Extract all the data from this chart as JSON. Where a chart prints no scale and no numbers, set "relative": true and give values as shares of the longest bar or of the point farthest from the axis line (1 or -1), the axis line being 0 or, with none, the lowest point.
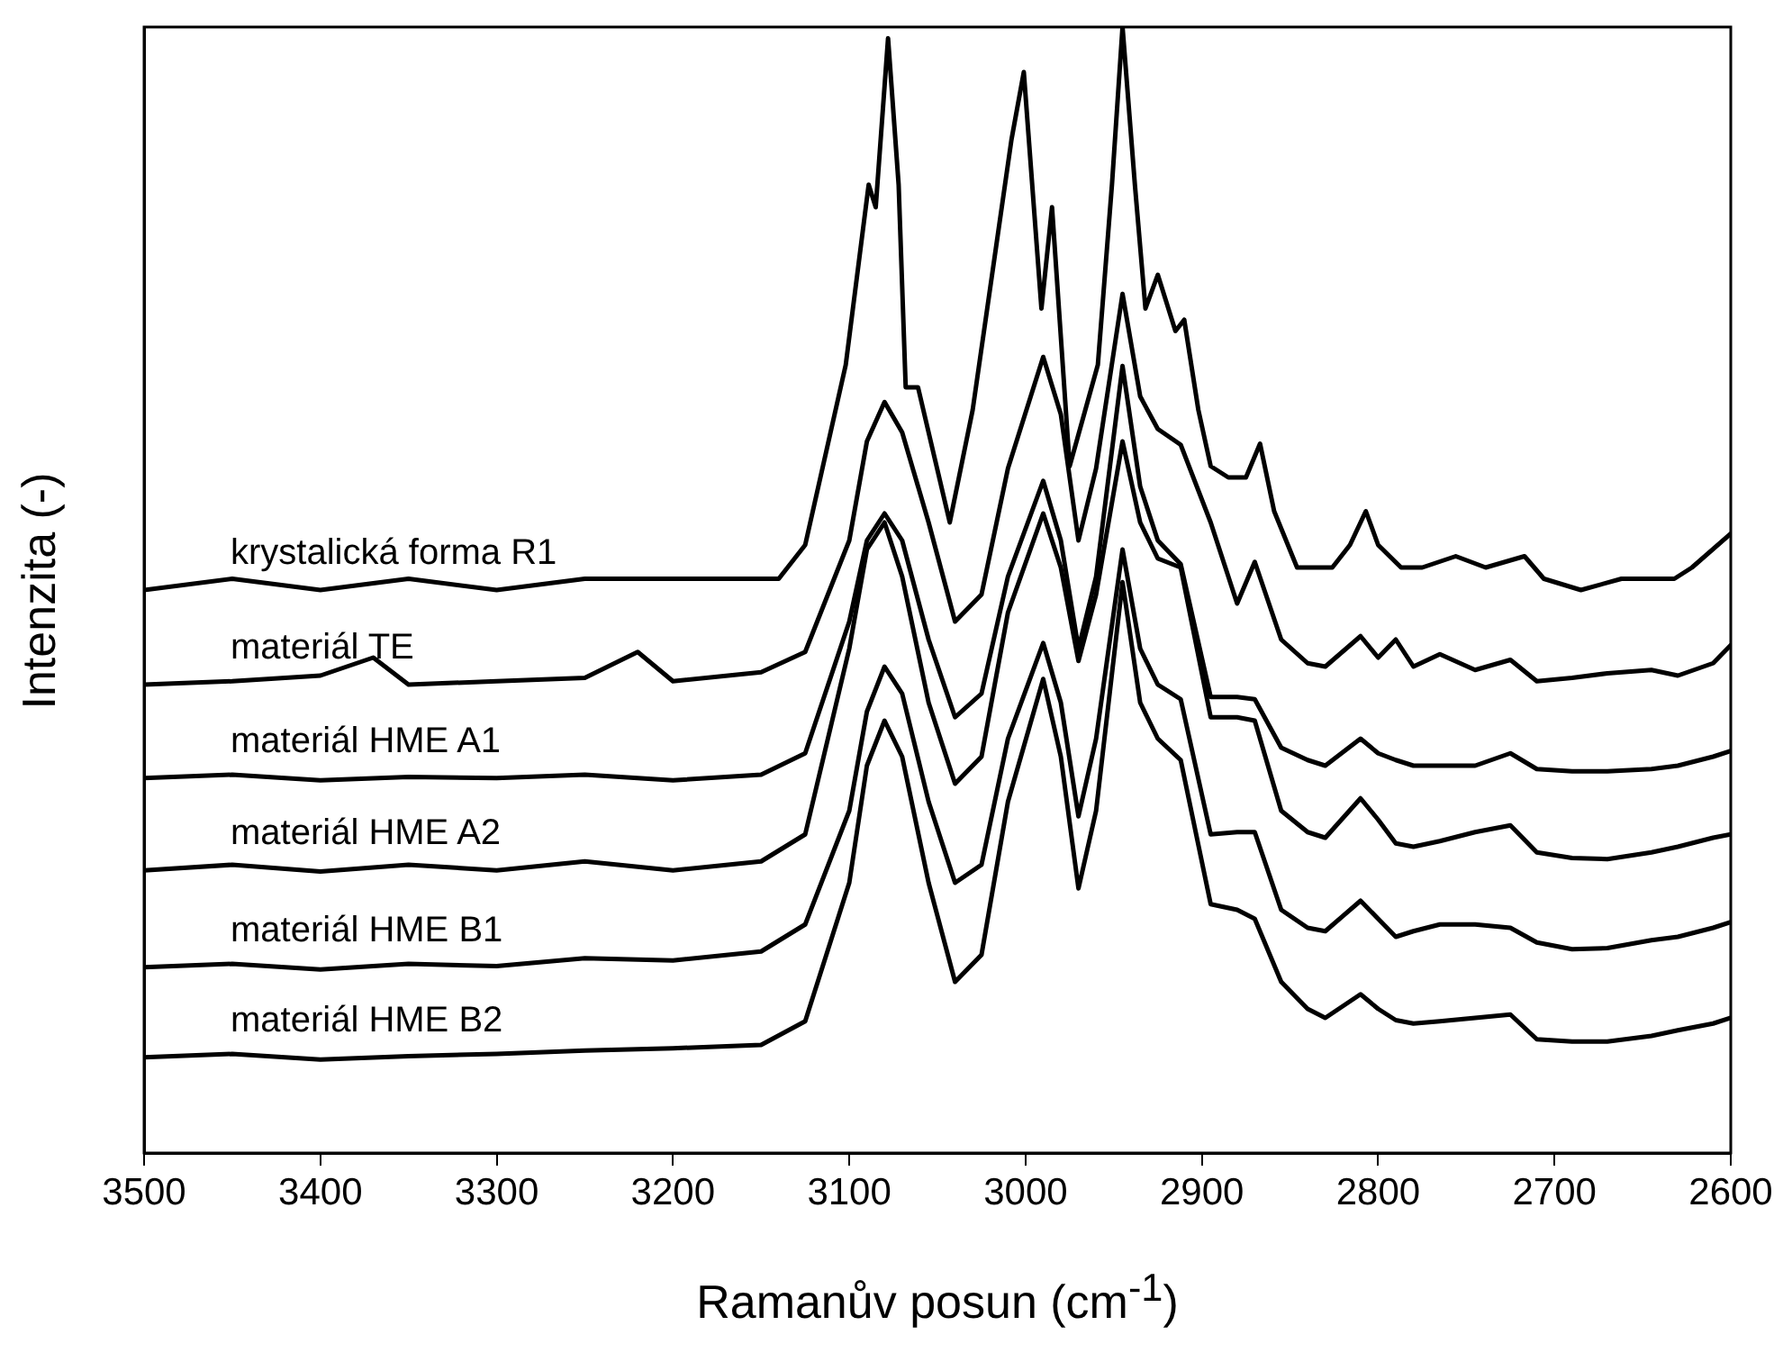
{
  "chart_data": {
    "type": "line",
    "xlabel": "Ramanův posun (cm$^{-1}$)",
    "ylabel": "Intenzita (-)",
    "relative": true,
    "xlim": [
      3500,
      2600
    ],
    "xticks": [
      3500,
      3400,
      3300,
      3200,
      3100,
      3000,
      2900,
      2800,
      2700,
      2600
    ],
    "legend": false,
    "line_style": "solid",
    "series": [
      {
        "name": "krystalická forma R1",
        "color": "#000000",
        "x": [
          3500,
          3450,
          3400,
          3350,
          3300,
          3250,
          3200,
          3160,
          3140,
          3125,
          3102,
          3089,
          3085,
          3078,
          3072,
          3068,
          3061,
          3043,
          3030,
          3008,
          3001,
          2991,
          2985,
          2975,
          2959,
          2951,
          2945,
          2938,
          2932,
          2925,
          2915,
          2910,
          2902,
          2895,
          2885,
          2875,
          2867,
          2859,
          2846,
          2826,
          2816,
          2807,
          2800,
          2787,
          2775,
          2756,
          2739,
          2717,
          2706,
          2685,
          2662,
          2632,
          2622,
          2600
        ],
        "values": [
          0.5,
          0.51,
          0.5,
          0.51,
          0.5,
          0.51,
          0.51,
          0.51,
          0.51,
          0.54,
          0.7,
          0.86,
          0.84,
          0.99,
          0.86,
          0.68,
          0.68,
          0.56,
          0.66,
          0.9,
          0.96,
          0.75,
          0.84,
          0.61,
          0.7,
          0.86,
          1.0,
          0.86,
          0.75,
          0.78,
          0.73,
          0.74,
          0.66,
          0.61,
          0.6,
          0.6,
          0.63,
          0.57,
          0.52,
          0.52,
          0.54,
          0.57,
          0.54,
          0.52,
          0.52,
          0.53,
          0.52,
          0.53,
          0.51,
          0.5,
          0.51,
          0.51,
          0.52,
          0.55
        ]
      },
      {
        "name": "materiál TE",
        "color": "#000000",
        "x": [
          3500,
          3450,
          3400,
          3370,
          3350,
          3300,
          3250,
          3220,
          3200,
          3150,
          3125,
          3100,
          3090,
          3080,
          3070,
          3055,
          3040,
          3025,
          3010,
          2990,
          2980,
          2970,
          2960,
          2945,
          2935,
          2925,
          2912,
          2895,
          2880,
          2870,
          2855,
          2840,
          2830,
          2810,
          2800,
          2790,
          2780,
          2765,
          2745,
          2725,
          2710,
          2690,
          2670,
          2645,
          2630,
          2610,
          2600
        ],
        "values": [
          0.416,
          0.419,
          0.424,
          0.44,
          0.416,
          0.419,
          0.422,
          0.445,
          0.419,
          0.427,
          0.445,
          0.544,
          0.632,
          0.667,
          0.64,
          0.56,
          0.472,
          0.496,
          0.608,
          0.707,
          0.656,
          0.544,
          0.608,
          0.763,
          0.672,
          0.643,
          0.629,
          0.56,
          0.488,
          0.525,
          0.456,
          0.435,
          0.432,
          0.459,
          0.44,
          0.456,
          0.432,
          0.443,
          0.429,
          0.438,
          0.419,
          0.422,
          0.426,
          0.429,
          0.424,
          0.435,
          0.451
        ]
      },
      {
        "name": "materiál HME A1",
        "color": "#000000",
        "x": [
          3500,
          3450,
          3400,
          3350,
          3300,
          3250,
          3200,
          3150,
          3125,
          3100,
          3090,
          3080,
          3070,
          3055,
          3040,
          3025,
          3010,
          2990,
          2980,
          2970,
          2960,
          2945,
          2935,
          2925,
          2912,
          2895,
          2880,
          2870,
          2855,
          2840,
          2830,
          2810,
          2800,
          2790,
          2780,
          2765,
          2745,
          2725,
          2710,
          2690,
          2670,
          2645,
          2630,
          2610,
          2600
        ],
        "values": [
          0.333,
          0.336,
          0.331,
          0.334,
          0.333,
          0.336,
          0.331,
          0.336,
          0.355,
          0.472,
          0.544,
          0.568,
          0.544,
          0.456,
          0.387,
          0.408,
          0.512,
          0.597,
          0.544,
          0.448,
          0.512,
          0.699,
          0.592,
          0.544,
          0.523,
          0.405,
          0.405,
          0.403,
          0.36,
          0.349,
          0.344,
          0.368,
          0.355,
          0.349,
          0.344,
          0.344,
          0.344,
          0.355,
          0.341,
          0.339,
          0.339,
          0.341,
          0.344,
          0.352,
          0.357
        ]
      },
      {
        "name": "materiál HME A2",
        "color": "#000000",
        "x": [
          3500,
          3450,
          3400,
          3350,
          3300,
          3250,
          3200,
          3150,
          3125,
          3100,
          3090,
          3080,
          3070,
          3055,
          3040,
          3025,
          3010,
          2990,
          2980,
          2970,
          2960,
          2945,
          2935,
          2925,
          2912,
          2895,
          2880,
          2870,
          2855,
          2840,
          2830,
          2810,
          2800,
          2790,
          2780,
          2765,
          2745,
          2725,
          2710,
          2690,
          2670,
          2645,
          2630,
          2610,
          2600
        ],
        "values": [
          0.251,
          0.256,
          0.25,
          0.256,
          0.251,
          0.259,
          0.251,
          0.259,
          0.283,
          0.448,
          0.536,
          0.56,
          0.512,
          0.4,
          0.328,
          0.352,
          0.48,
          0.568,
          0.52,
          0.437,
          0.496,
          0.632,
          0.56,
          0.528,
          0.52,
          0.387,
          0.387,
          0.384,
          0.304,
          0.285,
          0.28,
          0.315,
          0.296,
          0.275,
          0.272,
          0.277,
          0.285,
          0.291,
          0.267,
          0.262,
          0.261,
          0.267,
          0.272,
          0.28,
          0.283
        ]
      },
      {
        "name": "materiál HME B1",
        "color": "#000000",
        "x": [
          3500,
          3450,
          3400,
          3350,
          3300,
          3250,
          3200,
          3150,
          3125,
          3100,
          3090,
          3080,
          3070,
          3055,
          3040,
          3025,
          3010,
          2990,
          2980,
          2970,
          2960,
          2945,
          2935,
          2925,
          2912,
          2895,
          2880,
          2870,
          2855,
          2840,
          2830,
          2810,
          2800,
          2790,
          2780,
          2765,
          2745,
          2725,
          2710,
          2690,
          2670,
          2645,
          2630,
          2610,
          2600
        ],
        "values": [
          0.165,
          0.168,
          0.163,
          0.168,
          0.166,
          0.173,
          0.171,
          0.179,
          0.203,
          0.304,
          0.392,
          0.432,
          0.408,
          0.312,
          0.24,
          0.256,
          0.368,
          0.453,
          0.4,
          0.299,
          0.368,
          0.536,
          0.448,
          0.416,
          0.403,
          0.283,
          0.285,
          0.285,
          0.216,
          0.2,
          0.197,
          0.224,
          0.208,
          0.192,
          0.197,
          0.203,
          0.203,
          0.2,
          0.187,
          0.181,
          0.182,
          0.189,
          0.192,
          0.2,
          0.205
        ]
      },
      {
        "name": "materiál HME B2",
        "color": "#000000",
        "x": [
          3500,
          3450,
          3400,
          3350,
          3300,
          3250,
          3200,
          3150,
          3125,
          3100,
          3090,
          3080,
          3070,
          3055,
          3040,
          3025,
          3010,
          2990,
          2980,
          2970,
          2960,
          2945,
          2935,
          2925,
          2912,
          2895,
          2880,
          2870,
          2855,
          2840,
          2830,
          2810,
          2800,
          2790,
          2780,
          2765,
          2745,
          2725,
          2710,
          2690,
          2670,
          2645,
          2630,
          2610,
          2600
        ],
        "values": [
          0.085,
          0.088,
          0.083,
          0.086,
          0.088,
          0.091,
          0.093,
          0.096,
          0.117,
          0.24,
          0.344,
          0.384,
          0.352,
          0.24,
          0.152,
          0.176,
          0.312,
          0.421,
          0.352,
          0.235,
          0.304,
          0.507,
          0.4,
          0.368,
          0.349,
          0.221,
          0.216,
          0.208,
          0.152,
          0.128,
          0.12,
          0.141,
          0.128,
          0.118,
          0.115,
          0.117,
          0.12,
          0.123,
          0.101,
          0.099,
          0.099,
          0.104,
          0.109,
          0.115,
          0.12
        ]
      }
    ]
  }
}
